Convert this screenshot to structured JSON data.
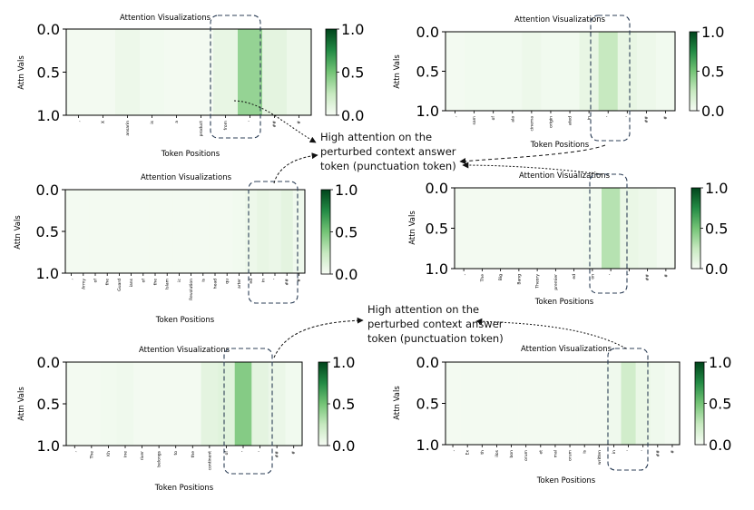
{
  "callouts": [
    {
      "lines": [
        "High attention on the",
        "perturbed context answer",
        "token (punctuation token)"
      ]
    },
    {
      "lines": [
        "High attention on the",
        "perturbed context answer",
        "token (punctuation token)"
      ]
    }
  ],
  "chart_data": [
    {
      "type": "heatmap",
      "title": "Attention Visualizations",
      "xlabel": "Token Positions",
      "ylabel": "Attn Vals",
      "y_ticks": [
        "0.0",
        "0.5",
        "1.0"
      ],
      "colorbar_ticks": [
        "1.0",
        "0.5",
        "0.0"
      ],
      "colorbar_range": [
        0,
        1
      ],
      "tokens": [
        ",",
        "X",
        "ansarin",
        "is",
        "a",
        "product",
        "from",
        "'",
        "##",
        "#"
      ],
      "values": [
        0.02,
        0.02,
        0.05,
        0.03,
        0.02,
        0.02,
        0.08,
        0.4,
        0.1,
        0.05
      ]
    },
    {
      "type": "heatmap",
      "title": "Attention Visualizations",
      "xlabel": "Token Positions",
      "ylabel": "Attn Vals",
      "y_ticks": [
        "0.0",
        "0.5",
        "1.0"
      ],
      "colorbar_ticks": [
        "1.0",
        "0.5",
        "0.0"
      ],
      "colorbar_range": [
        0,
        1
      ],
      "tokens": [
        ",",
        "sam",
        "of",
        "ala",
        "cinema",
        "origin",
        "ated",
        "in",
        "'",
        "'",
        "##",
        "#"
      ],
      "values": [
        0.02,
        0.03,
        0.03,
        0.03,
        0.05,
        0.03,
        0.03,
        0.08,
        0.25,
        0.08,
        0.05,
        0.03
      ]
    },
    {
      "type": "heatmap",
      "title": "Attention Visualizations",
      "xlabel": "Token Positions",
      "ylabel": "Attn Vals",
      "y_ticks": [
        "0.0",
        "0.5",
        "1.0"
      ],
      "colorbar_ticks": [
        "1.0",
        "0.5",
        "0.0"
      ],
      "colorbar_range": [
        0,
        1
      ],
      "tokens": [
        ",",
        "Army",
        "of",
        "the",
        "Guard",
        "ians",
        "of",
        "the",
        "Islam",
        "ic",
        "Revolution",
        "is",
        "head",
        "qu",
        "arter",
        "ed",
        "in",
        "'",
        "##",
        "#"
      ],
      "values": [
        0.02,
        0.02,
        0.02,
        0.02,
        0.02,
        0.02,
        0.02,
        0.02,
        0.02,
        0.02,
        0.02,
        0.02,
        0.02,
        0.02,
        0.03,
        0.05,
        0.08,
        0.06,
        0.1,
        0.04
      ]
    },
    {
      "type": "heatmap",
      "title": "Attention Visualizations",
      "xlabel": "Token Positions",
      "ylabel": "Attn Vals",
      "y_ticks": [
        "0.0",
        "0.5",
        "1.0"
      ],
      "colorbar_ticks": [
        "1.0",
        "0.5",
        "0.0"
      ],
      "colorbar_range": [
        0,
        1
      ],
      "tokens": [
        ",",
        "The",
        "Big",
        "Bang",
        "Theory",
        "premier",
        "ed",
        "on",
        "'",
        "'",
        "##",
        "#"
      ],
      "values": [
        0.02,
        0.02,
        0.02,
        0.02,
        0.02,
        0.02,
        0.02,
        0.03,
        0.3,
        0.07,
        0.05,
        0.02
      ]
    },
    {
      "type": "heatmap",
      "title": "Attention Visualizations",
      "xlabel": "Token Positions",
      "ylabel": "Attn Vals",
      "y_ticks": [
        "0.0",
        "0.5",
        "1.0"
      ],
      "colorbar_ticks": [
        "1.0",
        "0.5",
        "0.0"
      ],
      "colorbar_range": [
        0,
        1
      ],
      "tokens": [
        ",",
        "The",
        "Kh",
        "ine",
        "river",
        "belongs",
        "to",
        "the",
        "continent",
        "of",
        "'",
        "'",
        "##",
        "#"
      ],
      "values": [
        0.02,
        0.02,
        0.03,
        0.04,
        0.02,
        0.02,
        0.02,
        0.02,
        0.1,
        0.12,
        0.45,
        0.1,
        0.06,
        0.03
      ]
    },
    {
      "type": "heatmap",
      "title": "Attention Visualizations",
      "xlabel": "Token Positions",
      "ylabel": "Attn Vals",
      "y_ticks": [
        "0.0",
        "0.5",
        "1.0"
      ],
      "colorbar_ticks": [
        "1.0",
        "0.5",
        "0.0"
      ],
      "colorbar_range": [
        0,
        1
      ],
      "tokens": [
        ",",
        "Ex",
        "th",
        "ilos",
        "bon",
        "orum",
        "et",
        "mal",
        "orum",
        "is",
        "written",
        "in",
        "'",
        "'",
        "##",
        "#"
      ],
      "values": [
        0.02,
        0.02,
        0.02,
        0.02,
        0.02,
        0.02,
        0.02,
        0.02,
        0.02,
        0.02,
        0.02,
        0.04,
        0.2,
        0.07,
        0.04,
        0.02
      ]
    }
  ]
}
